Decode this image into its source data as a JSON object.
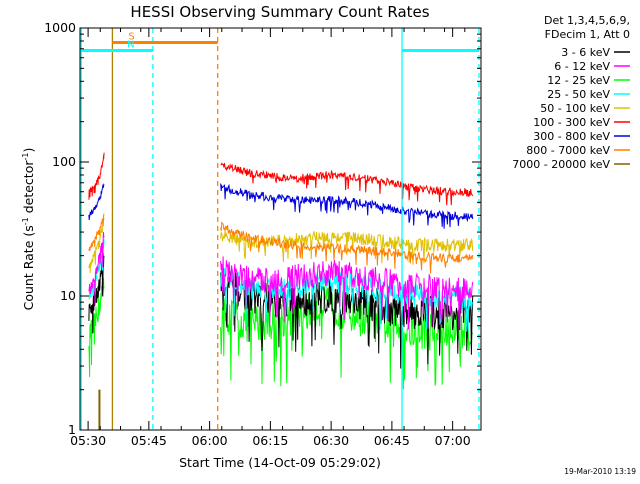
{
  "chart_data": {
    "type": "line",
    "title": "HESSI Observing Summary Count Rates",
    "xlabel": "Start Time (14-Oct-09 05:29:02)",
    "ylabel_main": "Count Rate (s",
    "ylabel_sup1": "-1",
    "ylabel_mid": " detector",
    "ylabel_sup2": "-1",
    "ylabel_end": ")",
    "y_scale": "log",
    "ylim": [
      1,
      1000
    ],
    "xlim_minutes": [
      328,
      427
    ],
    "x_ticks": [
      {
        "label": "05:30",
        "t": 330
      },
      {
        "label": "05:45",
        "t": 345
      },
      {
        "label": "06:00",
        "t": 360
      },
      {
        "label": "06:15",
        "t": 375
      },
      {
        "label": "06:30",
        "t": 390
      },
      {
        "label": "06:45",
        "t": 405
      },
      {
        "label": "07:00",
        "t": 420
      }
    ],
    "y_ticks": [
      {
        "label": "1",
        "v": 1
      },
      {
        "label": "10",
        "v": 10
      },
      {
        "label": "100",
        "v": 100
      },
      {
        "label": "1000",
        "v": 1000
      }
    ],
    "legend_header": [
      "Det 1,3,4,5,6,9,",
      "FDecim 1, Att 0"
    ],
    "legend_position": "right",
    "series": [
      {
        "name": "3 - 6 keV",
        "color": "#000000",
        "seg1": [
          [
            330.2,
            7.5
          ],
          [
            331.5,
            9
          ],
          [
            333.0,
            13
          ],
          [
            334.0,
            20
          ]
        ],
        "seg2": [
          [
            362.7,
            13
          ],
          [
            370,
            10
          ],
          [
            380,
            9
          ],
          [
            390,
            10
          ],
          [
            397,
            9
          ],
          [
            405,
            8
          ],
          [
            413,
            7.5
          ],
          [
            425,
            7.5
          ]
        ],
        "noise": 0.13
      },
      {
        "name": "6 - 12 keV",
        "color": "#ff00ff",
        "seg1": [
          [
            330.2,
            11
          ],
          [
            331.5,
            13
          ],
          [
            333.0,
            20
          ],
          [
            334.0,
            28
          ]
        ],
        "seg2": [
          [
            362.7,
            16
          ],
          [
            370,
            13
          ],
          [
            380,
            13.5
          ],
          [
            390,
            15
          ],
          [
            397,
            14
          ],
          [
            405,
            12.5
          ],
          [
            413,
            11.5
          ],
          [
            425,
            11
          ]
        ],
        "noise": 0.1
      },
      {
        "name": "12 - 25 keV",
        "color": "#00ff00",
        "seg1": [
          [
            330.2,
            5
          ],
          [
            331.5,
            6
          ],
          [
            333.0,
            9
          ],
          [
            334.0,
            13
          ]
        ],
        "seg2": [
          [
            362.7,
            7.5
          ],
          [
            370,
            6.2
          ],
          [
            380,
            7
          ],
          [
            388,
            8.5
          ],
          [
            395,
            7.5
          ],
          [
            403,
            6
          ],
          [
            412,
            5.5
          ],
          [
            425,
            5.5
          ]
        ],
        "noise": 0.15
      },
      {
        "name": "25 - 50 keV",
        "color": "#00ffff",
        "seg1": [
          [
            330.2,
            10
          ],
          [
            331.5,
            12
          ],
          [
            333.0,
            18
          ],
          [
            334.0,
            25
          ]
        ],
        "seg2": [
          [
            362.7,
            14
          ],
          [
            370,
            11.5
          ],
          [
            380,
            11.5
          ],
          [
            390,
            13
          ],
          [
            397,
            12
          ],
          [
            405,
            10.5
          ],
          [
            413,
            10
          ],
          [
            425,
            9.5
          ]
        ],
        "noise": 0.09
      },
      {
        "name": "50 - 100 keV",
        "color": "#e0c000",
        "seg1": [
          [
            330.2,
            16
          ],
          [
            331.5,
            20
          ],
          [
            333.0,
            28
          ],
          [
            334.0,
            38
          ]
        ],
        "seg2": [
          [
            362.7,
            28
          ],
          [
            370,
            25
          ],
          [
            380,
            26
          ],
          [
            390,
            28
          ],
          [
            397,
            27
          ],
          [
            405,
            25
          ],
          [
            413,
            24
          ],
          [
            425,
            24
          ]
        ],
        "noise": 0.05
      },
      {
        "name": "100 - 300 keV",
        "color": "#ff0000",
        "seg1": [
          [
            330.2,
            60
          ],
          [
            331.5,
            65
          ],
          [
            333.0,
            80
          ],
          [
            334.0,
            115
          ]
        ],
        "seg2": [
          [
            362.7,
            95
          ],
          [
            370,
            83
          ],
          [
            380,
            75
          ],
          [
            390,
            80
          ],
          [
            397,
            76
          ],
          [
            405,
            70
          ],
          [
            413,
            62
          ],
          [
            425,
            59
          ]
        ],
        "noise": 0.03
      },
      {
        "name": "300 - 800 keV",
        "color": "#0000dd",
        "seg1": [
          [
            330.2,
            40
          ],
          [
            331.5,
            44
          ],
          [
            333.0,
            55
          ],
          [
            334.0,
            70
          ]
        ],
        "seg2": [
          [
            362.7,
            65
          ],
          [
            370,
            57
          ],
          [
            380,
            52
          ],
          [
            390,
            52
          ],
          [
            397,
            50
          ],
          [
            405,
            45
          ],
          [
            413,
            41
          ],
          [
            425,
            39
          ]
        ],
        "noise": 0.03
      },
      {
        "name": "800 - 7000 keV",
        "color": "#ff7f00",
        "seg1": [
          [
            330.2,
            22
          ],
          [
            331.5,
            26
          ],
          [
            333.0,
            32
          ],
          [
            334.0,
            42
          ]
        ],
        "seg2": [
          [
            362.7,
            33
          ],
          [
            370,
            27
          ],
          [
            380,
            24
          ],
          [
            390,
            23
          ],
          [
            397,
            22
          ],
          [
            405,
            21
          ],
          [
            413,
            19.5
          ],
          [
            425,
            19
          ]
        ],
        "noise": 0.035
      },
      {
        "name": "7000 - 20000 keV",
        "color": "#806000",
        "bar": {
          "t": 332.8,
          "v": 2
        }
      }
    ],
    "annotations": [
      {
        "label": "S",
        "color": "#ff7f00",
        "t_start": 336,
        "t_end": 362,
        "v": 780
      },
      {
        "label": "N",
        "color": "#00ffff",
        "t_start": 328,
        "t_end": 346,
        "v": 680
      },
      {
        "label": "",
        "color": "#00ffff",
        "t_start": 407.5,
        "t_end": 426.5,
        "v": 680
      }
    ],
    "vlines": [
      {
        "t": 328.3,
        "color": "#00ffff",
        "style": "solid"
      },
      {
        "t": 346.0,
        "color": "#00ffff",
        "style": "dashed"
      },
      {
        "t": 407.5,
        "color": "#00ffff",
        "style": "solid"
      },
      {
        "t": 426.5,
        "color": "#00ffff",
        "style": "dashed"
      },
      {
        "t": 336.0,
        "color": "#b08000",
        "style": "solid"
      },
      {
        "t": 362.0,
        "color": "#ff7f00",
        "style": "dashed"
      }
    ]
  },
  "footer": {
    "timestamp": "19-Mar-2010 13:19"
  }
}
